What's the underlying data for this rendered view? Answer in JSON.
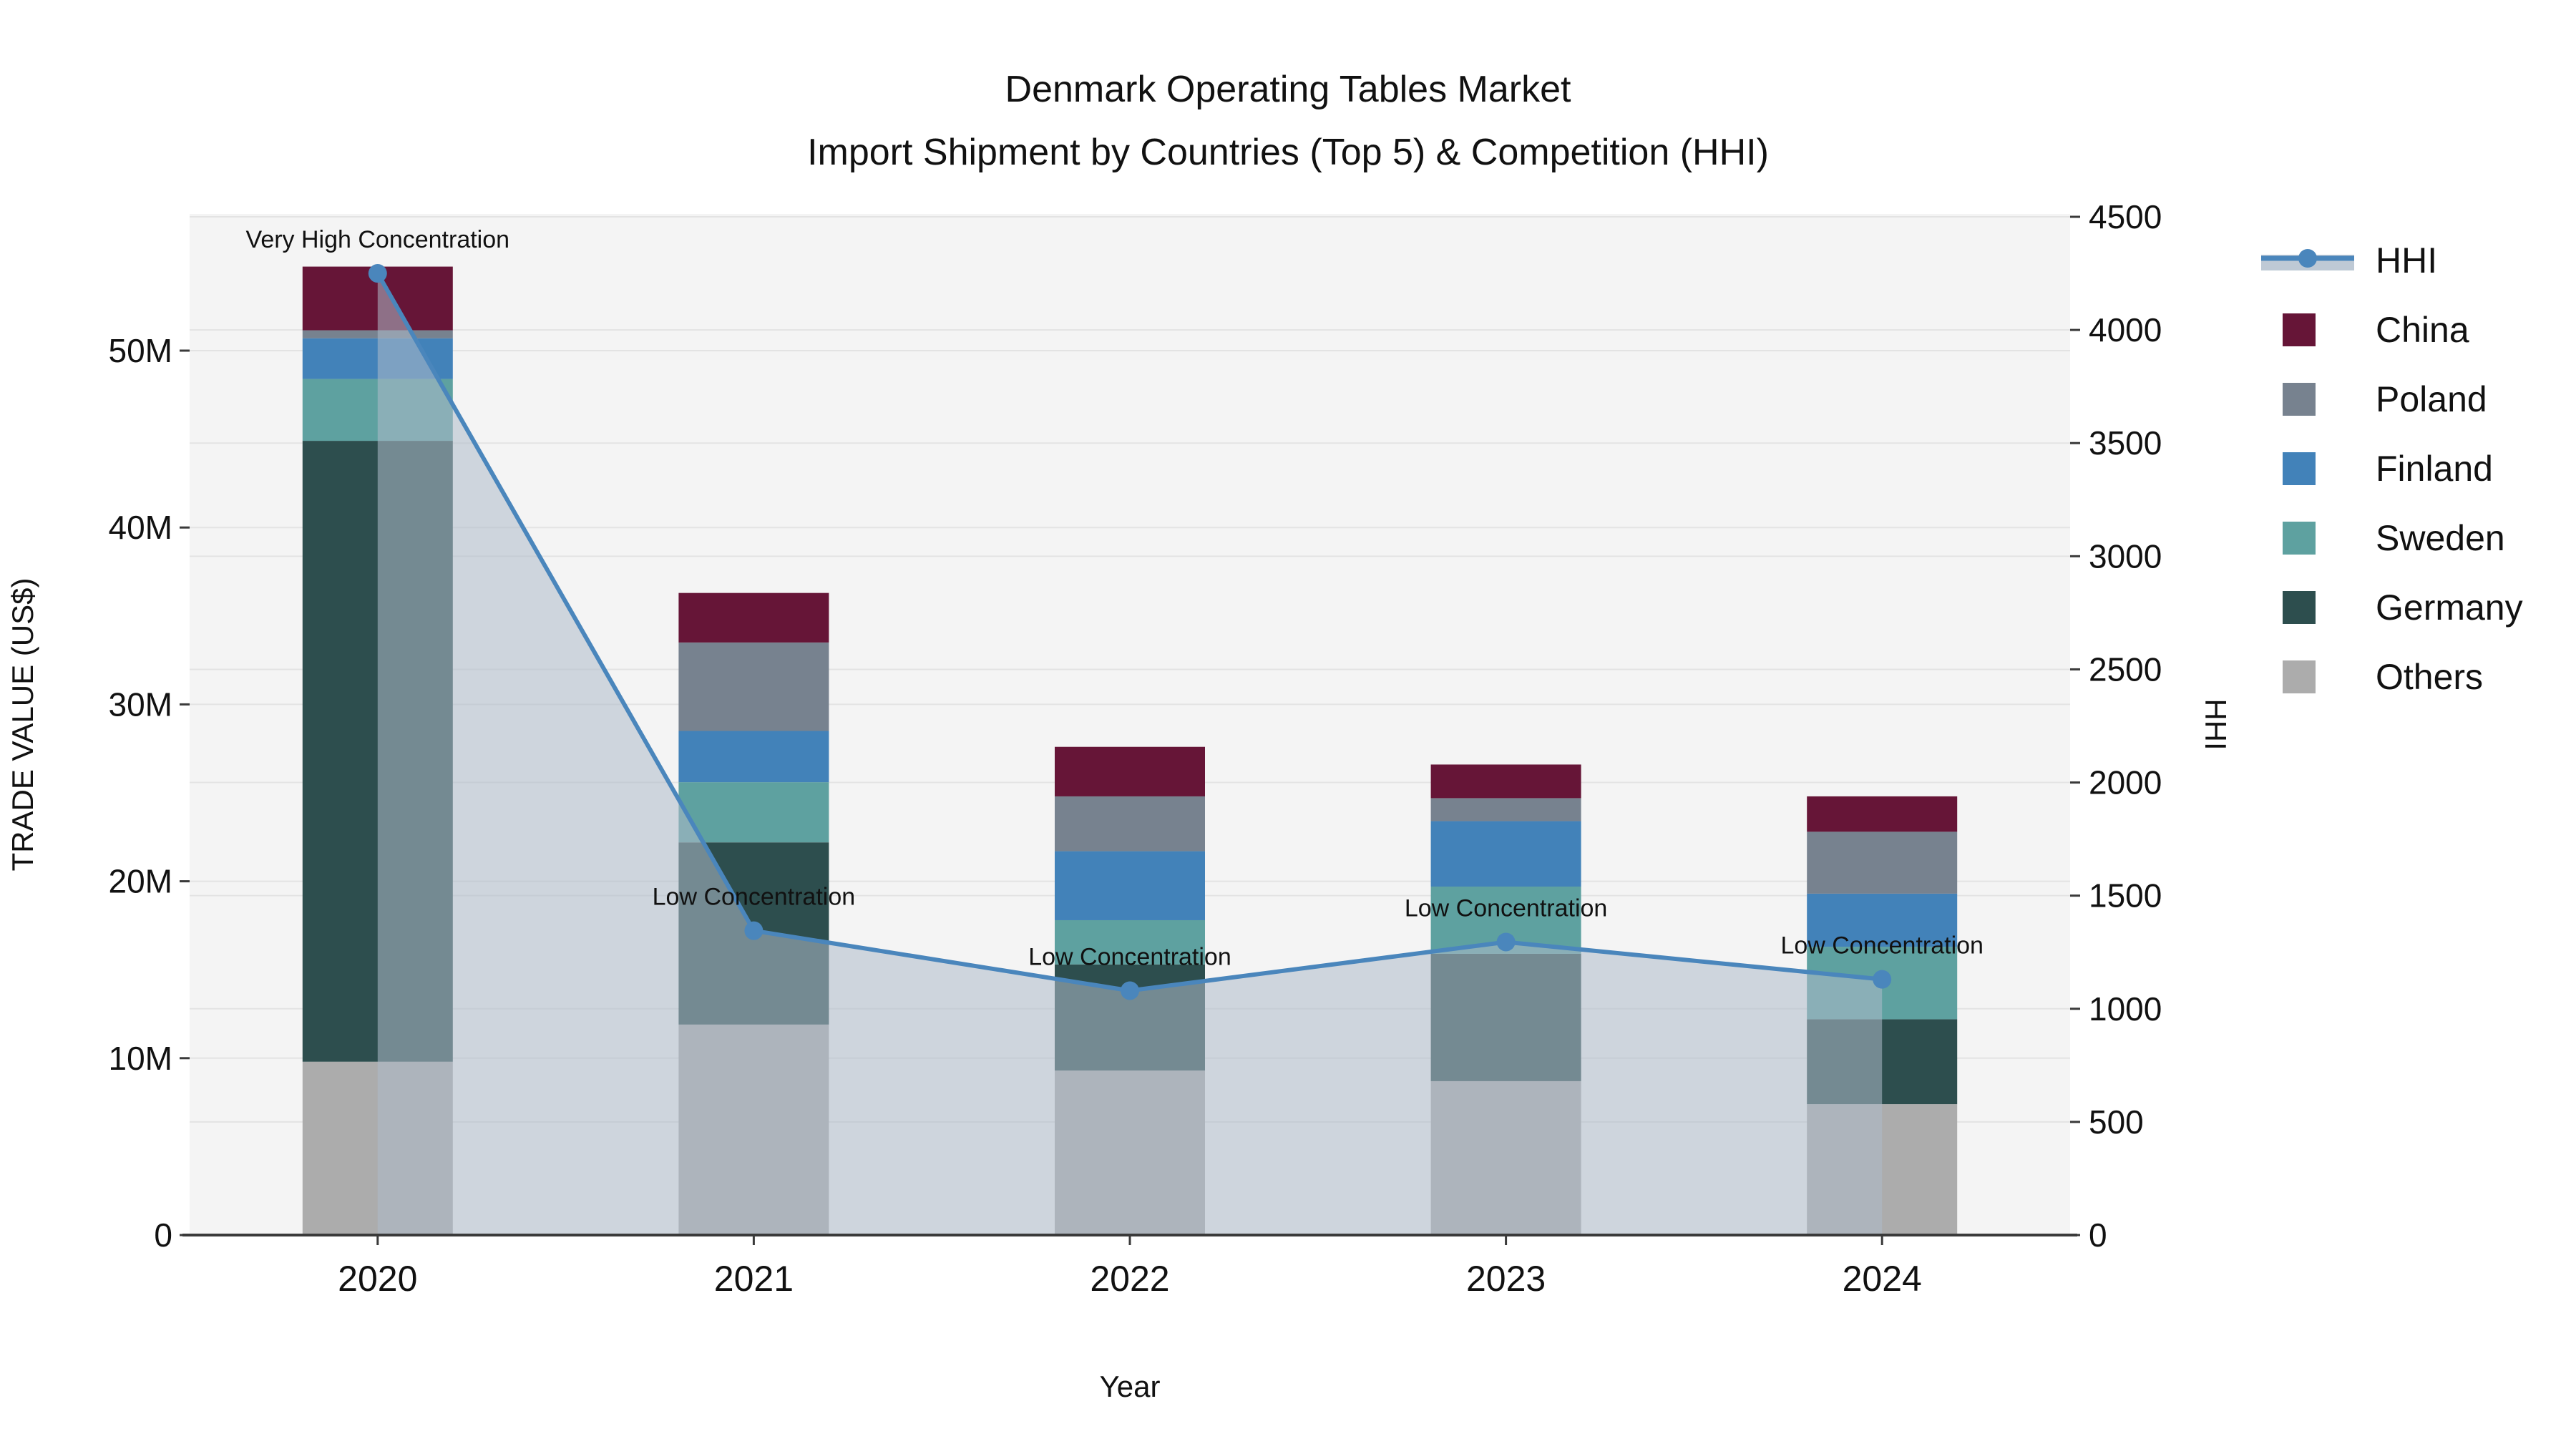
{
  "title": {
    "line1": "Denmark Operating Tables Market",
    "line2": "Import Shipment by Countries (Top 5) & Competition (HHI)"
  },
  "axes": {
    "x_label": "Year",
    "y_left_label": "TRADE VALUE (US$)",
    "y_right_label": "HHI",
    "y_left_ticks": [
      "0",
      "10M",
      "20M",
      "30M",
      "40M",
      "50M"
    ],
    "y_left_tick_values": [
      0,
      10,
      20,
      30,
      40,
      50
    ],
    "y_right_ticks": [
      "0",
      "500",
      "1000",
      "1500",
      "2000",
      "2500",
      "3000",
      "3500",
      "4000",
      "4500"
    ],
    "y_right_tick_values": [
      0,
      500,
      1000,
      1500,
      2000,
      2500,
      3000,
      3500,
      4000,
      4500
    ],
    "y_left_max_m": 57.7,
    "y_right_max": 4500
  },
  "legend": {
    "entries": [
      {
        "label": "HHI",
        "type": "line",
        "color": "#4a86bc"
      },
      {
        "label": "China",
        "type": "patch",
        "color": "#661537"
      },
      {
        "label": "Poland",
        "type": "patch",
        "color": "#77828f"
      },
      {
        "label": "Finland",
        "type": "patch",
        "color": "#4282b9"
      },
      {
        "label": "Sweden",
        "type": "patch",
        "color": "#5ea1a0"
      },
      {
        "label": "Germany",
        "type": "patch",
        "color": "#2d4e4e"
      },
      {
        "label": "Others",
        "type": "patch",
        "color": "#acacac"
      }
    ]
  },
  "chart_data": {
    "type": "combo-stacked-bar-and-line",
    "categories": [
      "2020",
      "2021",
      "2022",
      "2023",
      "2024"
    ],
    "stack_order_bottom_to_top": [
      "Others",
      "Germany",
      "Sweden",
      "Finland",
      "Poland",
      "China"
    ],
    "series": [
      {
        "name": "Others",
        "unit": "USD millions",
        "color": "#acacac",
        "values": [
          9.8,
          11.9,
          9.3,
          8.7,
          7.4
        ]
      },
      {
        "name": "Germany",
        "unit": "USD millions",
        "color": "#2d4e4e",
        "values": [
          35.1,
          10.3,
          6.0,
          7.2,
          4.8
        ]
      },
      {
        "name": "Sweden",
        "unit": "USD millions",
        "color": "#5ea1a0",
        "values": [
          3.5,
          3.4,
          2.5,
          3.8,
          4.1
        ]
      },
      {
        "name": "Finland",
        "unit": "USD millions",
        "color": "#4282b9",
        "values": [
          2.3,
          2.9,
          3.9,
          3.7,
          3.0
        ]
      },
      {
        "name": "Poland",
        "unit": "USD millions",
        "color": "#77828f",
        "values": [
          0.45,
          5.0,
          3.1,
          1.3,
          3.5
        ]
      },
      {
        "name": "China",
        "unit": "USD millions",
        "color": "#661537",
        "values": [
          3.6,
          2.8,
          2.8,
          1.9,
          2.0
        ]
      }
    ],
    "line_series": {
      "name": "HHI",
      "color": "#4a86bc",
      "values": [
        4250,
        1345,
        1080,
        1295,
        1130
      ],
      "area_fill": "rgba(174,187,203,0.55)"
    },
    "annotations": [
      {
        "category": "2020",
        "text": "Very High Concentration"
      },
      {
        "category": "2021",
        "text": "Low Concentration"
      },
      {
        "category": "2022",
        "text": "Low Concentration"
      },
      {
        "category": "2023",
        "text": "Low Concentration"
      },
      {
        "category": "2024",
        "text": "Low Concentration"
      }
    ],
    "title": "Denmark Operating Tables Market — Import Shipment by Countries (Top 5) & Competition (HHI)",
    "xlabel": "Year",
    "ylabel_left": "TRADE VALUE (US$)",
    "ylabel_right": "HHI",
    "ylim_left_m": [
      0,
      57.7
    ],
    "ylim_right": [
      0,
      4500
    ],
    "grid": true,
    "legend_position": "right"
  },
  "colors": {
    "plot_background": "#f4f4f4",
    "grid_line": "#e3e3e3",
    "axis_line": "#3a3a3a",
    "text": "#111111"
  }
}
